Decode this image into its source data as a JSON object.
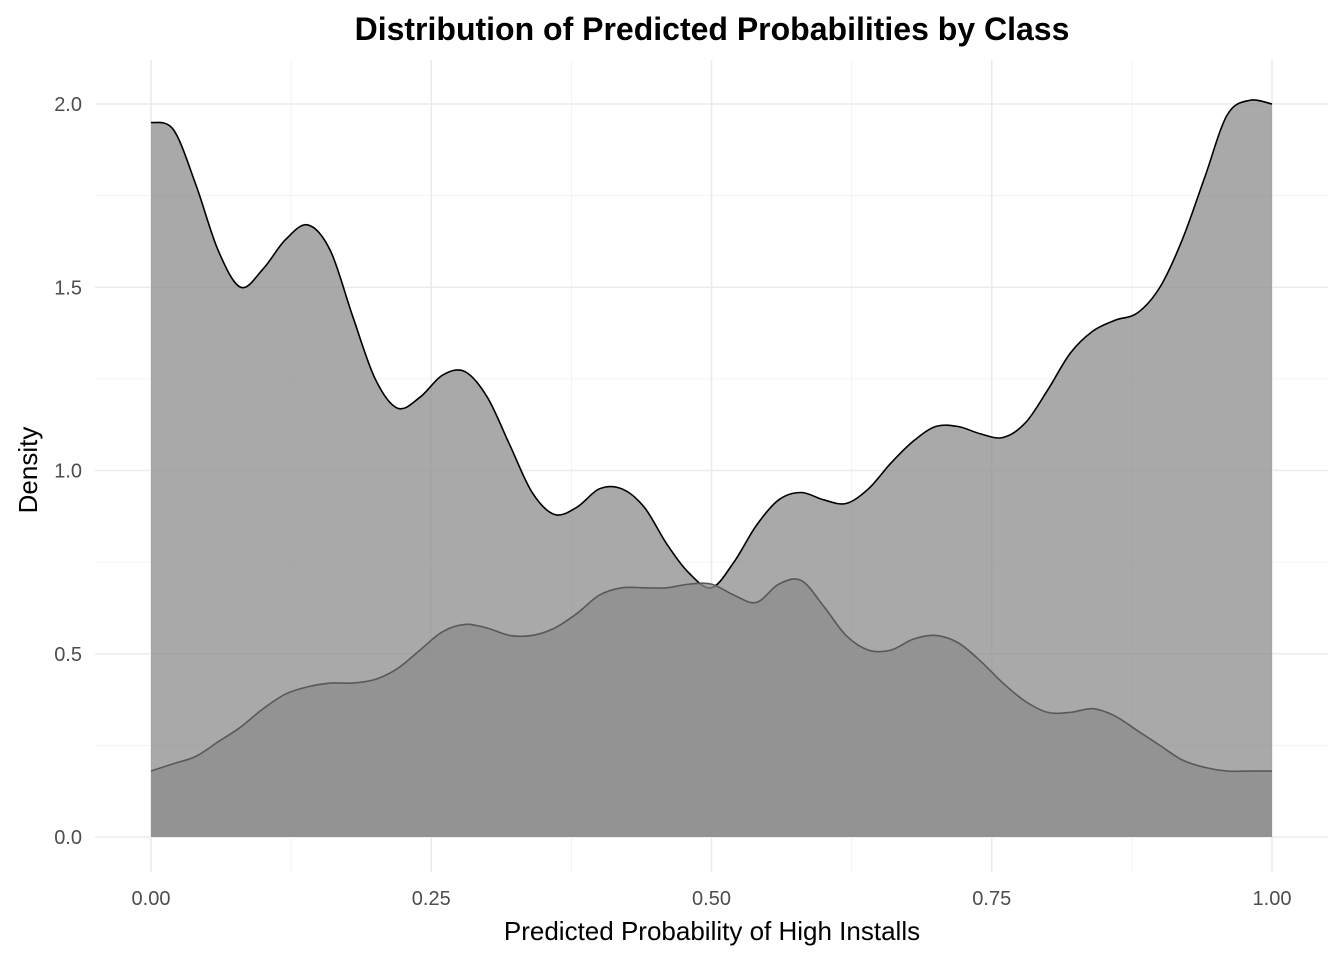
{
  "chart_data": {
    "type": "area",
    "title": "Distribution of Predicted Probabilities by Class",
    "xlabel": "Predicted Probability of High Installs",
    "ylabel": "Density",
    "xlim": [
      0,
      1
    ],
    "ylim": [
      0,
      2.0
    ],
    "x_ticks": [
      0.0,
      0.25,
      0.5,
      0.75,
      1.0
    ],
    "x_tick_labels": [
      "0.00",
      "0.25",
      "0.50",
      "0.75",
      "1.00"
    ],
    "y_ticks": [
      0.0,
      0.5,
      1.0,
      1.5,
      2.0
    ],
    "y_tick_labels": [
      "0.0",
      "0.5",
      "1.0",
      "1.5",
      "2.0"
    ],
    "grid": true,
    "legend": "none",
    "series": [
      {
        "fill": "#8c8c8c",
        "fill_opacity": 0.75,
        "stroke": "#000000",
        "x": [
          0.0,
          0.02,
          0.04,
          0.06,
          0.08,
          0.1,
          0.12,
          0.14,
          0.16,
          0.18,
          0.2,
          0.22,
          0.24,
          0.26,
          0.28,
          0.3,
          0.32,
          0.34,
          0.36,
          0.38,
          0.4,
          0.42,
          0.44,
          0.46,
          0.48,
          0.5,
          0.52,
          0.54,
          0.56,
          0.58,
          0.6,
          0.62,
          0.64,
          0.66,
          0.68,
          0.7,
          0.72,
          0.74,
          0.76,
          0.78,
          0.8,
          0.82,
          0.84,
          0.86,
          0.88,
          0.9,
          0.92,
          0.94,
          0.96,
          0.98,
          1.0
        ],
        "values": [
          1.95,
          1.93,
          1.78,
          1.6,
          1.5,
          1.55,
          1.63,
          1.67,
          1.6,
          1.42,
          1.25,
          1.17,
          1.2,
          1.26,
          1.27,
          1.2,
          1.07,
          0.94,
          0.88,
          0.9,
          0.95,
          0.95,
          0.9,
          0.8,
          0.72,
          0.68,
          0.75,
          0.85,
          0.92,
          0.94,
          0.92,
          0.91,
          0.95,
          1.02,
          1.08,
          1.12,
          1.12,
          1.1,
          1.09,
          1.13,
          1.22,
          1.32,
          1.38,
          1.41,
          1.43,
          1.5,
          1.63,
          1.8,
          1.97,
          2.01,
          2.0
        ]
      },
      {
        "fill": "#8c8c8c",
        "fill_opacity": 0.75,
        "stroke": "#595959",
        "x": [
          0.0,
          0.02,
          0.04,
          0.06,
          0.08,
          0.1,
          0.12,
          0.14,
          0.16,
          0.18,
          0.2,
          0.22,
          0.24,
          0.26,
          0.28,
          0.3,
          0.32,
          0.34,
          0.36,
          0.38,
          0.4,
          0.42,
          0.44,
          0.46,
          0.48,
          0.5,
          0.52,
          0.54,
          0.56,
          0.58,
          0.6,
          0.62,
          0.64,
          0.66,
          0.68,
          0.7,
          0.72,
          0.74,
          0.76,
          0.78,
          0.8,
          0.82,
          0.84,
          0.86,
          0.88,
          0.9,
          0.92,
          0.94,
          0.96,
          0.98,
          1.0
        ],
        "values": [
          0.18,
          0.2,
          0.22,
          0.26,
          0.3,
          0.35,
          0.39,
          0.41,
          0.42,
          0.42,
          0.43,
          0.46,
          0.51,
          0.56,
          0.58,
          0.57,
          0.55,
          0.55,
          0.57,
          0.61,
          0.66,
          0.68,
          0.68,
          0.68,
          0.69,
          0.69,
          0.66,
          0.64,
          0.69,
          0.7,
          0.63,
          0.55,
          0.51,
          0.51,
          0.54,
          0.55,
          0.53,
          0.48,
          0.42,
          0.37,
          0.34,
          0.34,
          0.35,
          0.33,
          0.29,
          0.25,
          0.21,
          0.19,
          0.18,
          0.18,
          0.18
        ]
      }
    ]
  }
}
